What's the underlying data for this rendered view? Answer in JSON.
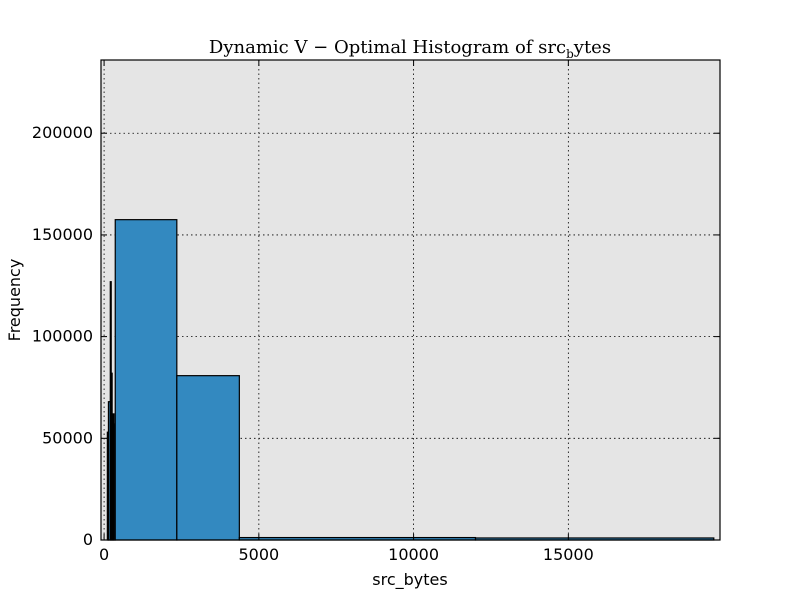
{
  "chart_data": {
    "type": "bar",
    "title": "Dynamic V − Optimal Histogram of src",
    "title_subscript": "b",
    "title_suffix": "ytes",
    "xlabel": "src_bytes",
    "ylabel": "Frequency",
    "xlim": [
      -100,
      19900
    ],
    "ylim": [
      0,
      236000
    ],
    "x_ticks": [
      0,
      5000,
      10000,
      15000
    ],
    "x_tick_labels": [
      "0",
      "5000",
      "10000",
      "15000"
    ],
    "y_ticks": [
      0,
      50000,
      100000,
      150000,
      200000
    ],
    "y_tick_labels": [
      "0",
      "50000",
      "100000",
      "150000",
      "200000"
    ],
    "grid": true,
    "bar_color": "#3389c0",
    "edge_color": "#000000",
    "axes_background": "#e5e5e5",
    "bins": [
      {
        "x0": 0,
        "x1": 105,
        "value": 0
      },
      {
        "x0": 105,
        "x1": 140,
        "value": 53000
      },
      {
        "x0": 140,
        "x1": 200,
        "value": 68000
      },
      {
        "x0": 200,
        "x1": 230,
        "value": 127000
      },
      {
        "x0": 230,
        "x1": 260,
        "value": 82000
      },
      {
        "x0": 260,
        "x1": 290,
        "value": 60000
      },
      {
        "x0": 290,
        "x1": 320,
        "value": 62000
      },
      {
        "x0": 320,
        "x1": 360,
        "value": 57000
      },
      {
        "x0": 360,
        "x1": 2350,
        "value": 157500
      },
      {
        "x0": 2350,
        "x1": 4370,
        "value": 80800
      },
      {
        "x0": 4370,
        "x1": 12000,
        "value": 1200
      },
      {
        "x0": 12000,
        "x1": 19700,
        "value": 1000
      }
    ]
  }
}
